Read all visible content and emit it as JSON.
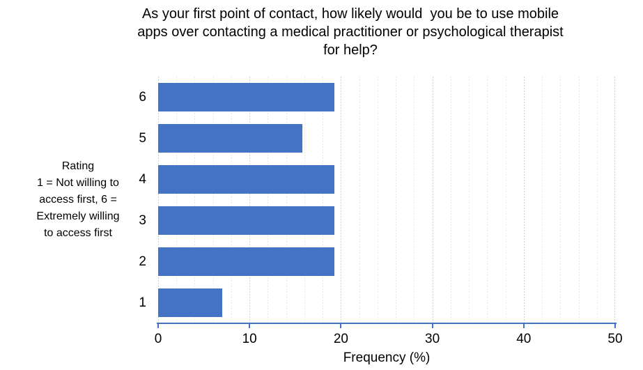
{
  "chart_data": {
    "type": "bar",
    "orientation": "horizontal",
    "title_lines": [
      "As your first point of contact, how likely would  you be to use mobile",
      "apps over contacting a medical practitioner or psychological therapist",
      "for help?"
    ],
    "categories": [
      "6",
      "5",
      "4",
      "3",
      "2",
      "1"
    ],
    "values": [
      19.3,
      15.8,
      19.3,
      19.3,
      19.3,
      7.0
    ],
    "xlabel": "Frequency (%)",
    "ylabel_lines": [
      "Rating",
      "1 = Not willing to",
      "access first, 6 =",
      "Extremely willing",
      "to access first"
    ],
    "xlim": [
      0,
      50
    ],
    "x_major_ticks": [
      0,
      10,
      20,
      30,
      40,
      50
    ],
    "x_minor_step": 2,
    "legend": "none",
    "grid": "vertical-dashed",
    "colors": {
      "bar": "#4472C4",
      "axis": "#4472C4",
      "major_grid": "#cfcfcf",
      "minor_grid": "#eaeaea",
      "text": "#000000"
    }
  }
}
